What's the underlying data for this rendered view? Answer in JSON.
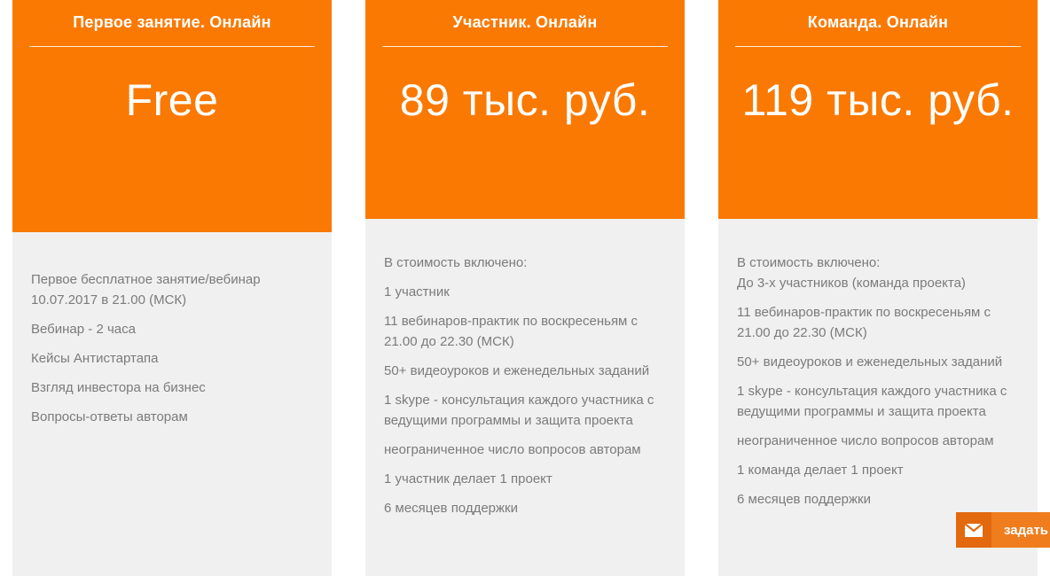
{
  "colors": {
    "accent_orange": "#fa7902",
    "card_body_background": "#f0f0f1",
    "feature_text": "#7b7b7b",
    "chat_button_icon_background": "#e2690e",
    "chat_button_label_background": "#ef7d1e"
  },
  "cards": [
    {
      "title": "Первое занятие. Онлайн",
      "price": "Free",
      "features": [
        "Первое бесплатное занятие/вебинар 10.07.2017 в 21.00 (МСК)",
        "Вебинар - 2 часа",
        "Кейсы Антистартапа",
        "Взгляд инвестора на бизнес",
        "Вопросы-ответы авторам"
      ]
    },
    {
      "title": "Участник. Онлайн",
      "price": "89 тыс. руб.",
      "features": [
        "В стоимость включено:",
        "1 участник",
        "11 вебинаров-практик по воскресеньям с 21.00 до 22.30 (МСК)",
        "50+ видеоуроков и еженедельных заданий",
        "1 skype - консультация каждого участника с ведущими программы и защита проекта",
        "неограниченное число вопросов авторам",
        "1 участник делает 1 проект",
        "6 месяцев поддержки"
      ]
    },
    {
      "title": "Команда. Онлайн",
      "price": "119 тыс. руб.",
      "features": [
        "В стоимость включено:\nДо 3-х участников (команда проекта)",
        "11 вебинаров-практик по воскресеньям с 21.00 до 22.30 (МСК)",
        "50+ видеоуроков и еженедельных заданий",
        "1 skype - консультация каждого участника с ведущими программы и защита проекта",
        "неограниченное число вопросов авторам",
        "1 команда делает 1 проект",
        "6 месяцев поддержки"
      ]
    }
  ],
  "chat_button": {
    "label": "задать вопрос",
    "icon": "envelope-icon"
  }
}
